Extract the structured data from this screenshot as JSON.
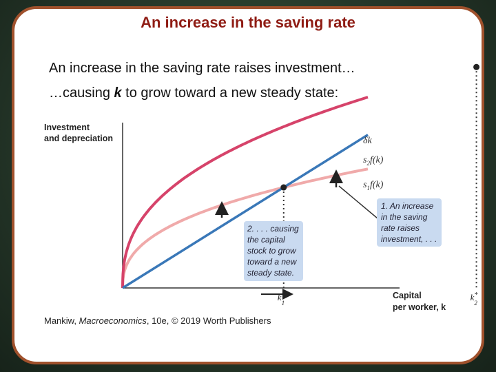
{
  "slide": {
    "title": "An increase in the saving rate",
    "line1": "An increase in the saving rate raises investment…",
    "line2_pre": "…causing ",
    "line2_var": "k",
    "line2_post": " to grow toward a new steady state:"
  },
  "colors": {
    "border": "#a0512c",
    "title": "#8f1c14",
    "depreciation": "#3a78b8",
    "s2_curve": "#d6436a",
    "s1_curve": "#f0aaaa",
    "annotation_box": "#c9daf0"
  },
  "chart_data": {
    "type": "line",
    "ylabel_lines": [
      "Investment",
      "and depreciation"
    ],
    "xlabel_lines": [
      "Capital",
      "per worker, k"
    ],
    "series": [
      {
        "name": "δk",
        "label": "δk",
        "kind": "linear",
        "slope": 0.5
      },
      {
        "name": "s2f(k)",
        "label_s": "s",
        "label_sub": "2",
        "label_rest": "f(k)",
        "kind": "concave",
        "scale": 0.93
      },
      {
        "name": "s1f(k)",
        "label_s": "s",
        "label_sub": "1",
        "label_rest": "f(k)",
        "kind": "concave",
        "scale": 0.58
      }
    ],
    "x_range": [
      0,
      1.95
    ],
    "y_range": [
      0,
      1.0
    ],
    "steady_states": [
      {
        "label": "k",
        "sup": "*",
        "sub": "1",
        "x": 0.9
      },
      {
        "label": "k",
        "sup": "*",
        "sub": "2",
        "x": 1.4
      }
    ],
    "annotations": [
      {
        "id": "1",
        "lines": [
          "1. An increase",
          "in the saving",
          "rate raises",
          "investment, . . ."
        ]
      },
      {
        "id": "2",
        "lines": [
          "2. . . . causing",
          "the capital",
          "stock to grow",
          "toward a new",
          "steady state."
        ]
      }
    ]
  },
  "credit": {
    "author": "Mankiw, ",
    "book": "Macroeconomics",
    "rest": ", 10e, © 2019 Worth Publishers"
  }
}
